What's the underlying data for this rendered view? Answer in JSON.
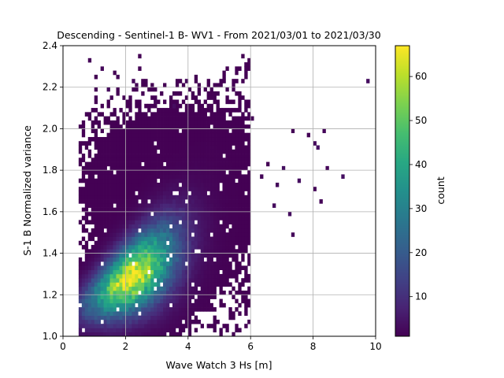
{
  "chart_data": {
    "type": "heatmap",
    "title": "Descending - Sentinel-1 B- WV1 - From 2021/03/01 to 2021/03/30",
    "xlabel": "Wave Watch 3 Hs [m]",
    "ylabel": "S-1 B Normalized variance",
    "xlim": [
      0,
      10
    ],
    "ylim": [
      1.0,
      2.4
    ],
    "xticks": [
      "0",
      "2",
      "4",
      "6",
      "8",
      "10"
    ],
    "yticks": [
      "1.0",
      "1.2",
      "1.4",
      "1.6",
      "1.8",
      "2.0",
      "2.2",
      "2.4"
    ],
    "grid": true,
    "colormap": "viridis",
    "colorbar": {
      "label": "count",
      "min": 1,
      "max": 67,
      "ticks": [
        "10",
        "20",
        "30",
        "40",
        "50",
        "60"
      ]
    },
    "bin_size": {
      "x": 0.1,
      "y": 0.02
    },
    "density_model": {
      "core_center": {
        "hs": 2.05,
        "variance": 1.37
      },
      "peak_count": 67,
      "trend": "variance increases with Hs; ridge from (1.1, 1.18) to (4.5, 1.65)"
    },
    "sparse_points": [
      [
        0.85,
        2.34
      ],
      [
        1.25,
        2.3
      ],
      [
        1.75,
        2.26
      ],
      [
        2.25,
        2.22
      ],
      [
        1.45,
        2.18
      ],
      [
        2.55,
        2.2
      ],
      [
        3.95,
        2.22
      ],
      [
        5.75,
        2.22
      ],
      [
        9.75,
        2.22
      ],
      [
        1.05,
        2.14
      ],
      [
        2.95,
        2.12
      ],
      [
        4.75,
        2.16
      ],
      [
        5.15,
        2.06
      ],
      [
        6.05,
        2.04
      ],
      [
        7.35,
        1.98
      ],
      [
        7.85,
        1.96
      ],
      [
        8.05,
        1.94
      ],
      [
        8.35,
        1.98
      ],
      [
        8.15,
        1.92
      ],
      [
        6.55,
        1.82
      ],
      [
        7.05,
        1.8
      ],
      [
        8.45,
        1.8
      ],
      [
        8.95,
        1.76
      ],
      [
        7.55,
        1.74
      ],
      [
        8.05,
        1.7
      ],
      [
        8.25,
        1.66
      ],
      [
        5.25,
        1.64
      ],
      [
        5.55,
        1.68
      ],
      [
        7.25,
        1.58
      ],
      [
        7.35,
        1.48
      ],
      [
        4.95,
        1.3
      ],
      [
        0.75,
        1.56
      ],
      [
        1.55,
        1.04
      ],
      [
        1.15,
        1.04
      ],
      [
        2.05,
        1.06
      ],
      [
        3.35,
        1.02
      ],
      [
        2.75,
        1.22
      ],
      [
        3.15,
        1.16
      ],
      [
        5.95,
        1.78
      ],
      [
        6.35,
        1.76
      ],
      [
        6.85,
        1.72
      ],
      [
        4.45,
        1.9
      ],
      [
        4.15,
        2.04
      ],
      [
        3.55,
        2.1
      ],
      [
        5.45,
        1.88
      ],
      [
        6.75,
        1.64
      ]
    ]
  }
}
